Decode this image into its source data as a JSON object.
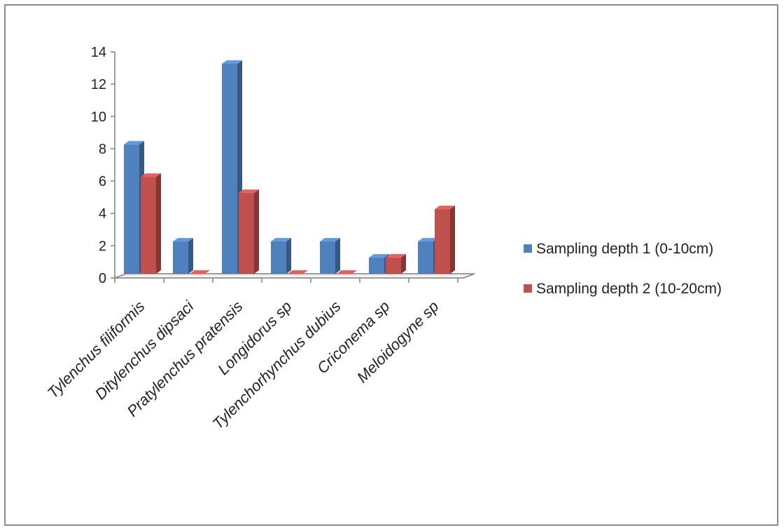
{
  "chart_data": {
    "type": "bar",
    "title": "",
    "xlabel": "",
    "ylabel": "",
    "categories": [
      "Tylenchus filiformis",
      "Ditylenchus dipsaci",
      "Pratylenchus pratensis",
      "Longidorus sp",
      "Tylenchorhynchus dubius",
      "Criconema sp",
      "Meloidogyne sp"
    ],
    "series": [
      {
        "name": "Sampling depth 1 (0-10cm)",
        "color": "#4f81bd",
        "values": [
          8,
          2,
          13,
          2,
          2,
          1,
          2
        ]
      },
      {
        "name": "Sampling depth 2 (10-20cm)",
        "color": "#c0504d",
        "values": [
          6,
          0,
          5,
          0,
          0,
          1,
          4
        ]
      }
    ],
    "ylim": [
      0,
      14
    ],
    "yticks": [
      "0",
      "2",
      "4",
      "6",
      "8",
      "10",
      "12",
      "14"
    ],
    "grid": false,
    "legend_position": "right",
    "style": "3d-clustered-column"
  }
}
